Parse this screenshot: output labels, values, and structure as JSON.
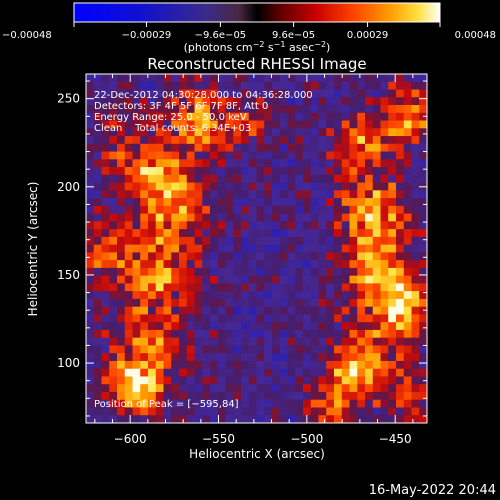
{
  "chart_data": {
    "type": "heatmap",
    "title": "Reconstructed RHESSI Image",
    "xlabel": "Heliocentric X (arcsec)",
    "ylabel": "Heliocentric Y (arcsec)",
    "xlim": [
      -625,
      -432
    ],
    "ylim": [
      66,
      264
    ],
    "x_ticks": [
      -600,
      -550,
      -500,
      -450
    ],
    "x_tick_labels": [
      "−600",
      "−550",
      "−500",
      "−450"
    ],
    "y_ticks": [
      100,
      150,
      200,
      250
    ],
    "y_tick_labels": [
      "100",
      "150",
      "200",
      "250"
    ],
    "colorbar": {
      "range": [
        -0.00048,
        0.00048
      ],
      "ticks": [
        -0.00048,
        -0.00029,
        -9.6e-05,
        9.6e-05,
        0.00029,
        0.00048
      ],
      "tick_labels": [
        "−0.00048",
        "−0.00029",
        "−9.6e−05",
        "9.6e−05",
        "0.00029",
        "0.00048"
      ],
      "unit_parts": [
        "(photons cm",
        "−2",
        " s",
        "−1",
        " asec",
        "−2",
        ")"
      ]
    },
    "info_lines": [
      "22-Dec-2012 04:30:28.000 to 04:36:28.000",
      "Detectors: 3F 4F 5F 6F 7F 8F, Att 0",
      "Energy Range: 25.0 - 50.0 keV",
      "Clean    Total counts: 6.34E+03"
    ],
    "peak_label": "Position of Peak = [−595,84]",
    "peak": [
      -595,
      84
    ]
  },
  "footer": {
    "date": "16-May-2022 20:44"
  }
}
